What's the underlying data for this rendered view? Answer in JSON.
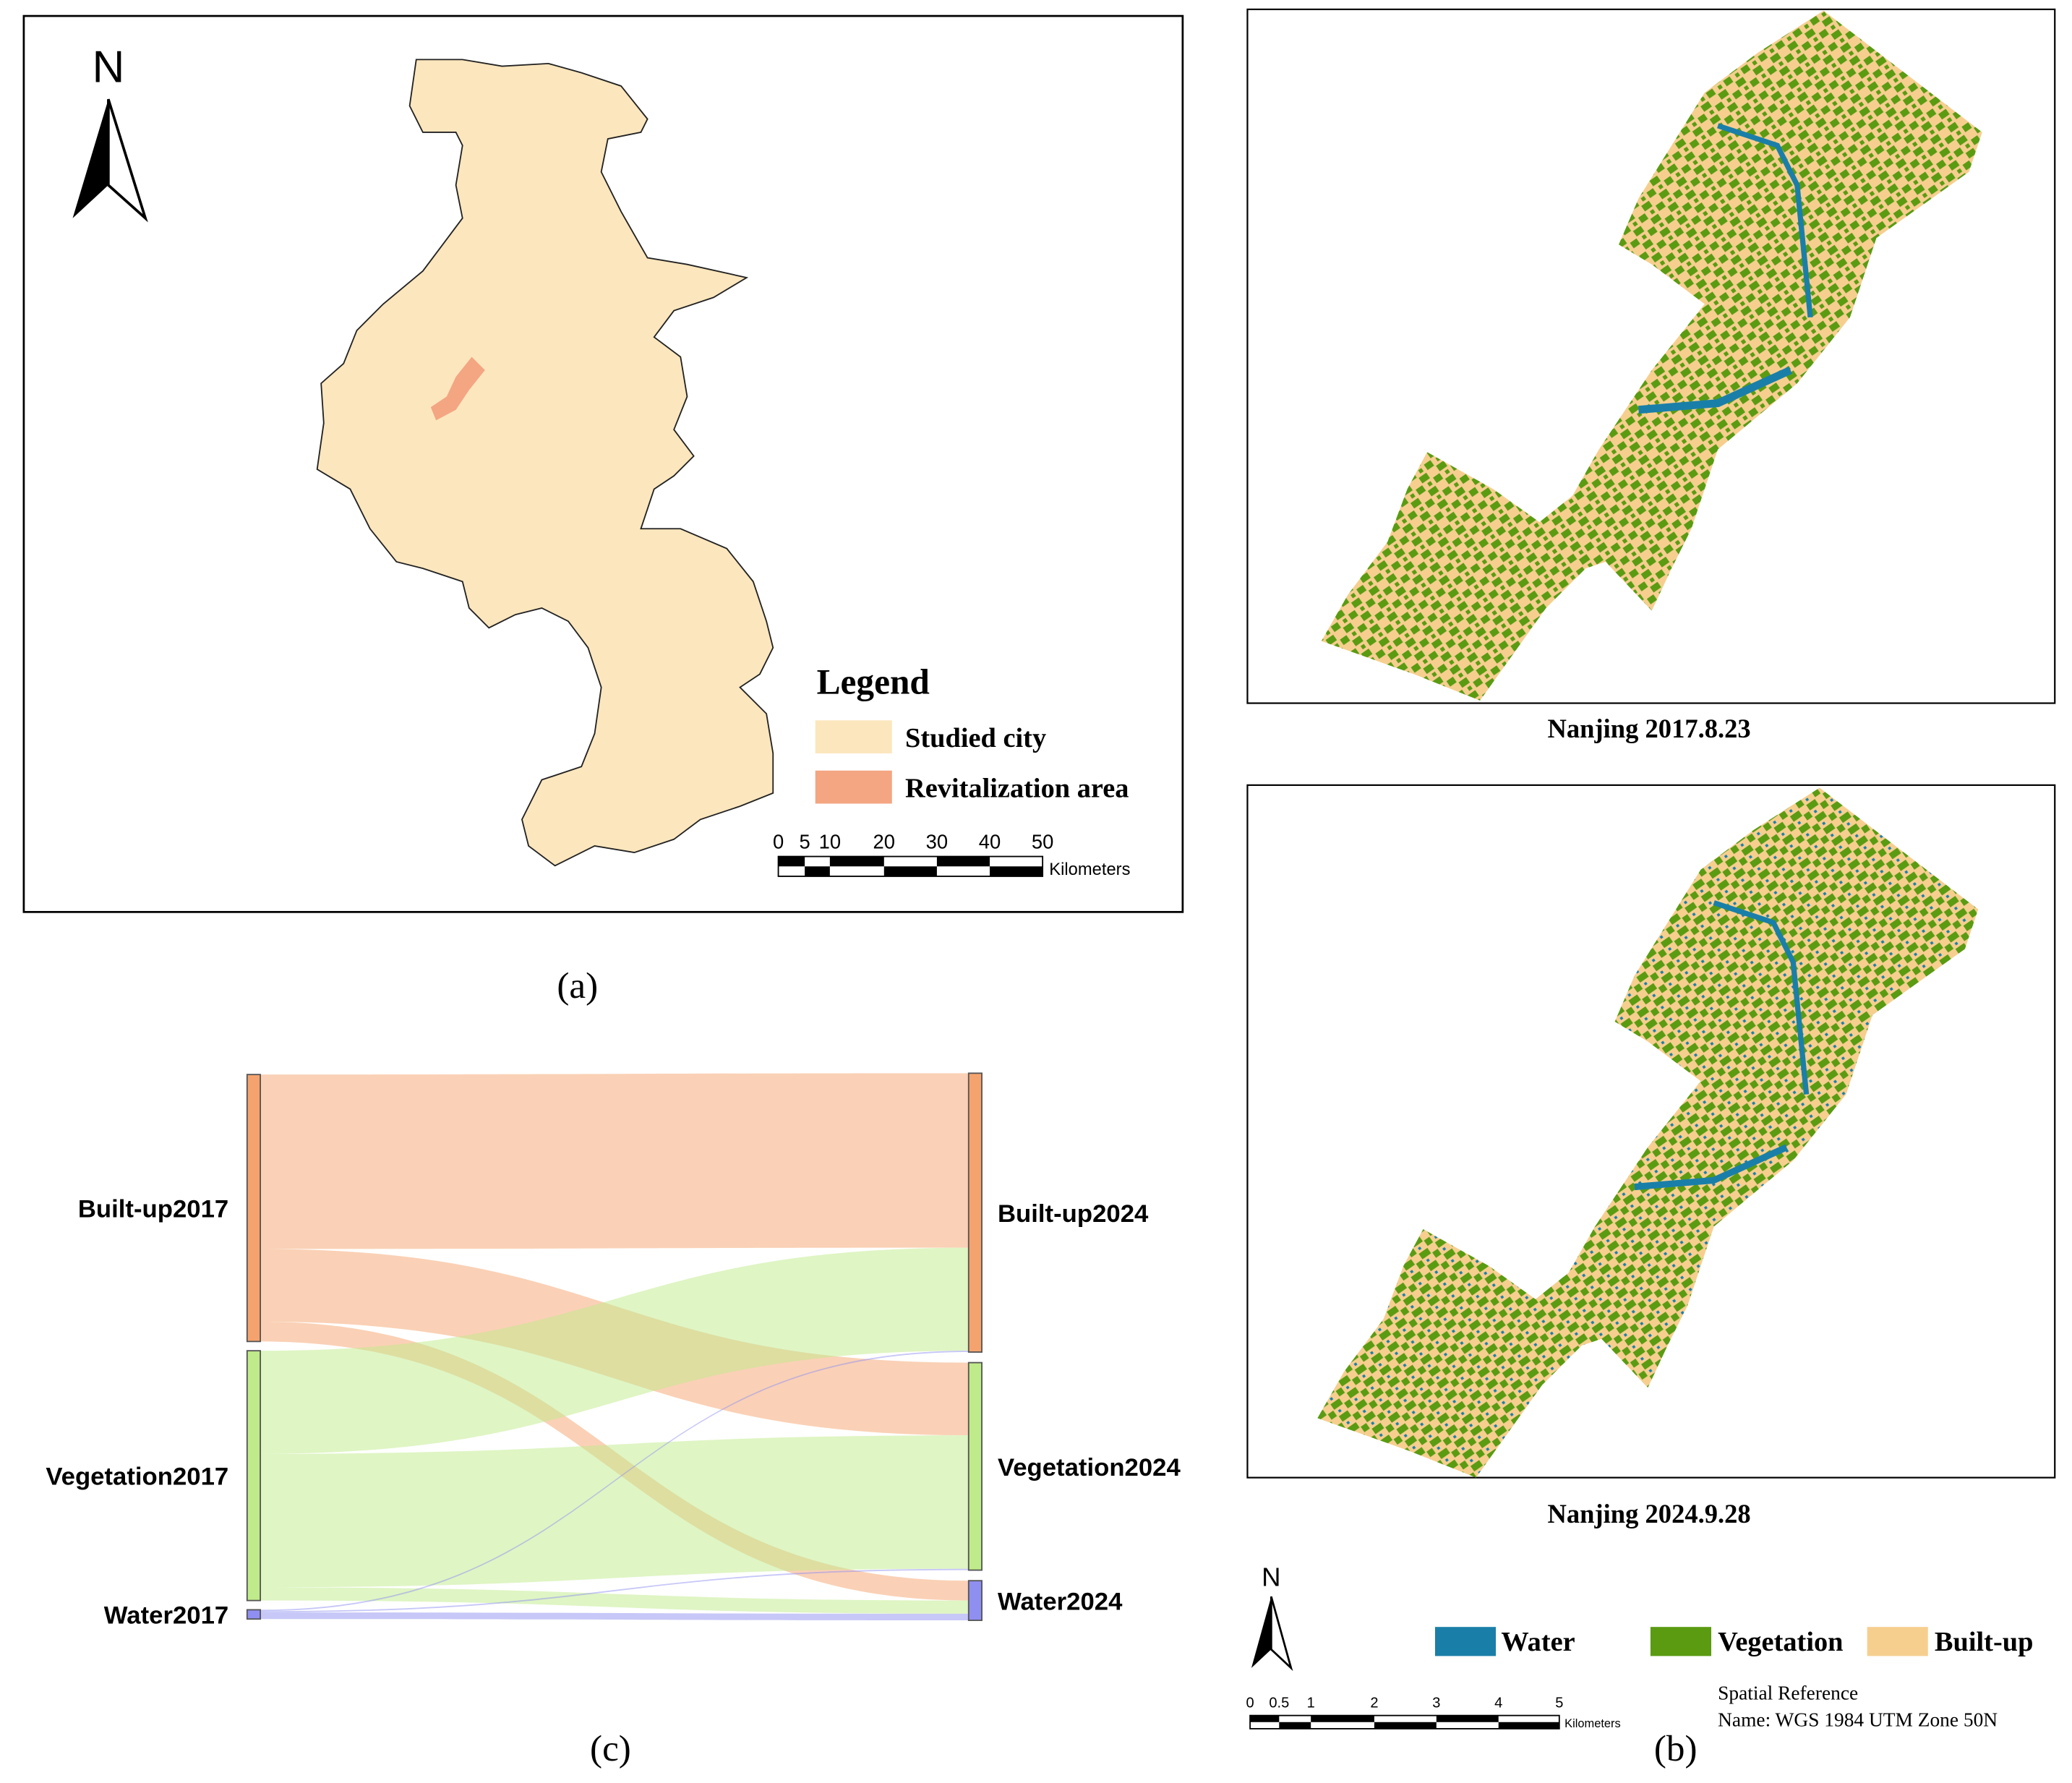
{
  "panel_a": {
    "north": "N",
    "legend": {
      "title": "Legend",
      "items": [
        "Studied city",
        "Revitalization area"
      ]
    },
    "scale": {
      "labels": [
        "0",
        "5",
        "10",
        "20",
        "30",
        "40",
        "50"
      ],
      "unit": "Kilometers"
    },
    "caption": "(a)"
  },
  "panel_b": {
    "maps": [
      "Nanjing 2017.8.23",
      "Nanjing 2024.9.28"
    ],
    "north": "N",
    "legend": [
      "Water",
      "Vegetation",
      "Built-up"
    ],
    "scale": {
      "labels": [
        "0",
        "0.5",
        "1",
        "2",
        "3",
        "4",
        "5"
      ],
      "unit": "Kilometers"
    },
    "spatial_reference": [
      "Spatial Reference",
      "Name: WGS 1984 UTM Zone 50N"
    ],
    "caption": "(b)"
  },
  "panel_c": {
    "caption": "(c)"
  },
  "chart_data": {
    "type": "sankey",
    "nodes": [
      {
        "name": "Built-up2017",
        "color": "#f5a36e"
      },
      {
        "name": "Vegetation2017",
        "color": "#c0eb8a"
      },
      {
        "name": "Water2017",
        "color": "#8f8ff2"
      },
      {
        "name": "Built-up2024",
        "color": "#f5a36e"
      },
      {
        "name": "Vegetation2024",
        "color": "#c0eb8a"
      },
      {
        "name": "Water2024",
        "color": "#8f8ff2"
      }
    ],
    "links": [
      {
        "source": "Built-up2017",
        "target": "Built-up2024",
        "value": 132
      },
      {
        "source": "Built-up2017",
        "target": "Vegetation2024",
        "value": 55
      },
      {
        "source": "Built-up2017",
        "target": "Water2024",
        "value": 15
      },
      {
        "source": "Vegetation2017",
        "target": "Built-up2024",
        "value": 78
      },
      {
        "source": "Vegetation2017",
        "target": "Vegetation2024",
        "value": 101
      },
      {
        "source": "Vegetation2017",
        "target": "Water2024",
        "value": 10
      },
      {
        "source": "Water2017",
        "target": "Built-up2024",
        "value": 1
      },
      {
        "source": "Water2017",
        "target": "Vegetation2024",
        "value": 1
      },
      {
        "source": "Water2017",
        "target": "Water2024",
        "value": 5
      }
    ]
  }
}
